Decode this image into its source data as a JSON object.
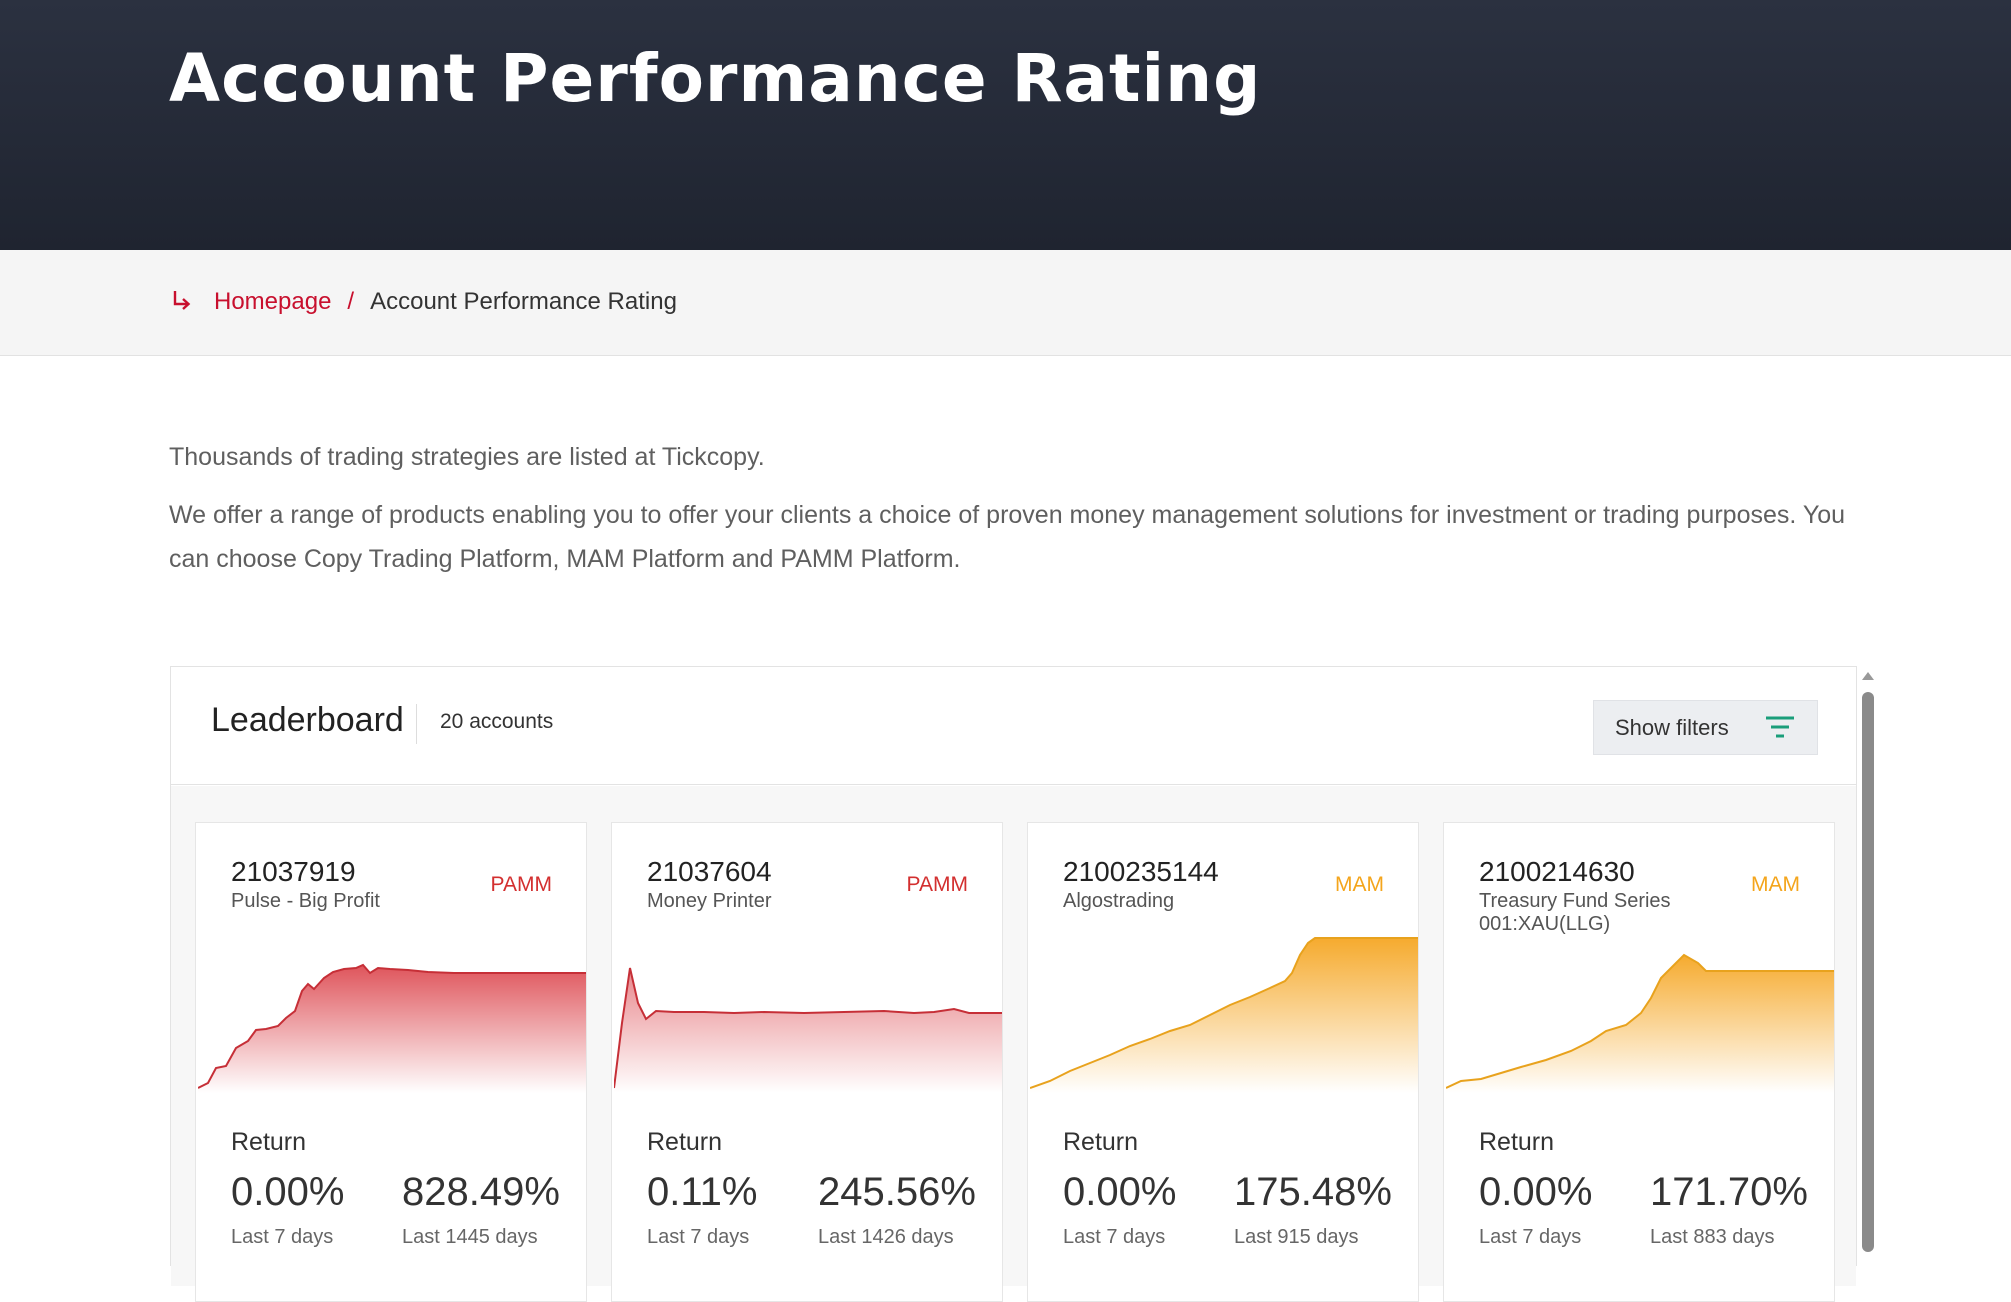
{
  "page": {
    "title": "Account Performance Rating"
  },
  "breadcrumb": {
    "home": "Homepage",
    "separator": "/",
    "current": "Account Performance Rating"
  },
  "intro": {
    "line1": "Thousands of trading strategies are listed at Tickcopy.",
    "line2": "We offer a range of products enabling you to offer your clients a choice of proven money management solutions for investment or trading purposes. You can choose Copy Trading Platform, MAM Platform and PAMM Platform."
  },
  "leaderboard": {
    "title": "Leaderboard",
    "count": "20 accounts",
    "filters_label": "Show filters",
    "return_label": "Return",
    "cards": [
      {
        "id": "21037919",
        "type": "PAMM",
        "name": "Pulse - Big Profit",
        "return_7d": "0.00%",
        "label_7d": "Last 7 days",
        "return_total": "828.49%",
        "label_total": "Last 1445 days",
        "color": "#d9363e"
      },
      {
        "id": "21037604",
        "type": "PAMM",
        "name": "Money Printer",
        "return_7d": "0.11%",
        "label_7d": "Last 7 days",
        "return_total": "245.56%",
        "label_total": "Last 1426 days",
        "color": "#d9363e"
      },
      {
        "id": "2100235144",
        "type": "MAM",
        "name": "Algostrading",
        "return_7d": "0.00%",
        "label_7d": "Last 7 days",
        "return_total": "175.48%",
        "label_total": "Last 915 days",
        "color": "#f5a623"
      },
      {
        "id": "2100214630",
        "type": "MAM",
        "name": "Treasury Fund Series 001:XAU(LLG)",
        "return_7d": "0.00%",
        "label_7d": "Last 7 days",
        "return_total": "171.70%",
        "label_total": "Last 883 days",
        "color": "#f5a623"
      }
    ]
  },
  "colors": {
    "hero_bg": "#262b37",
    "accent_red": "#c8102e",
    "pamm": "#d32f2f",
    "mam": "#f4a51c",
    "filter_icon": "#1a9e7a"
  },
  "icons": {
    "breadcrumb": "return-arrow-icon",
    "filters": "filter-lines-icon"
  }
}
